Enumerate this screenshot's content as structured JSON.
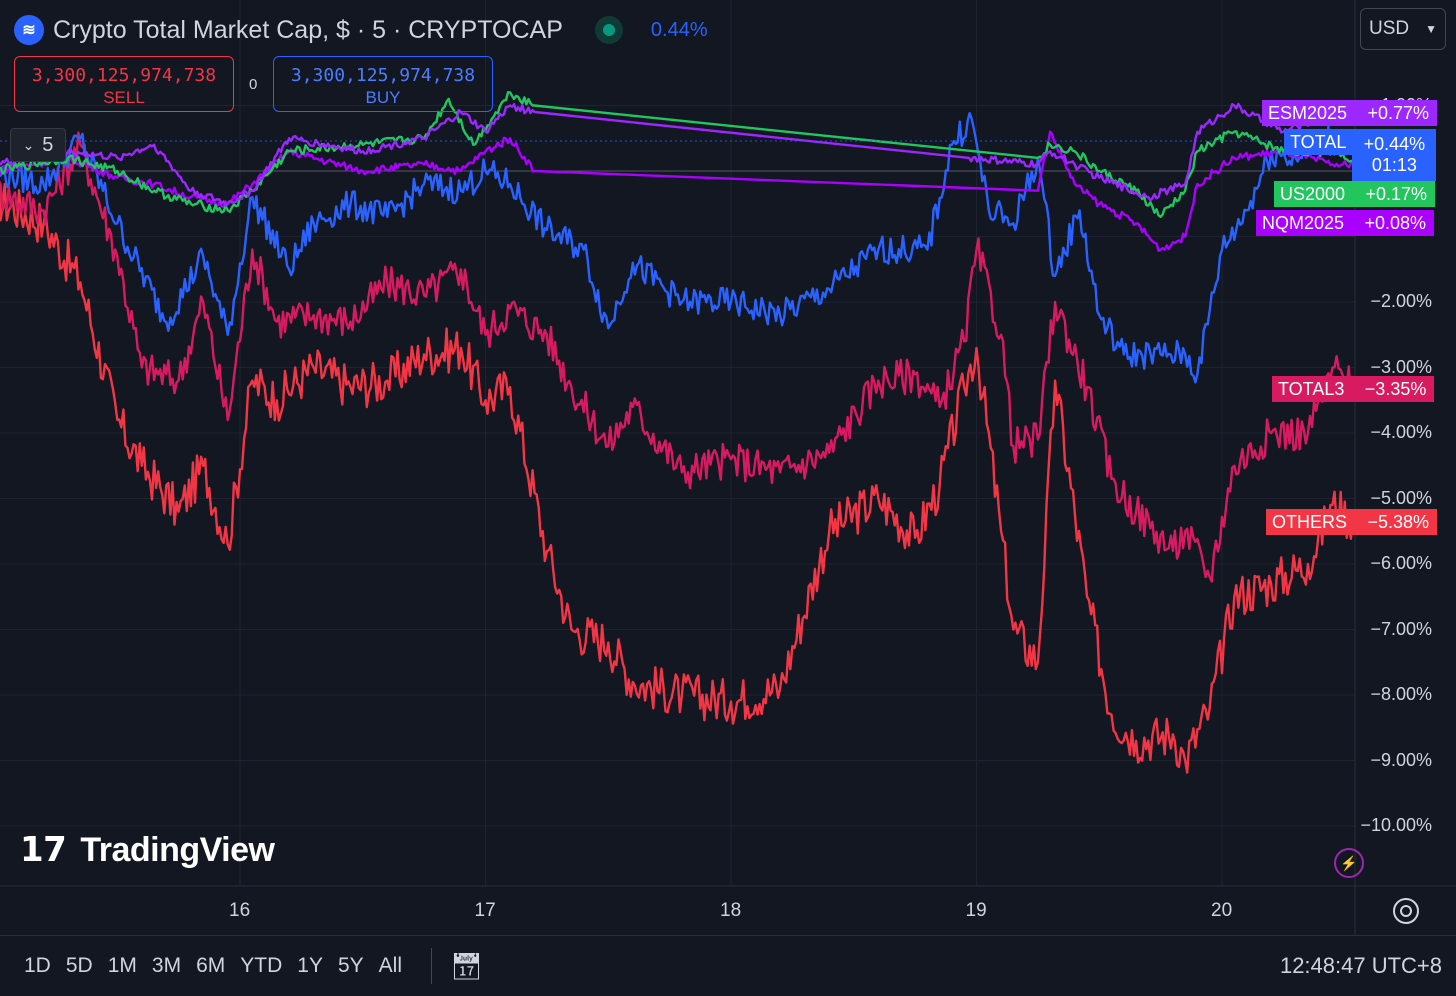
{
  "header": {
    "symbol_icon": "crypto-cap-logo",
    "title": "Crypto Total Market Cap, $ · 5 · CRYPTOCAP",
    "change": "0.44%"
  },
  "order": {
    "sell_price": "3,300,125,974,738",
    "sell_label": "SELL",
    "spread": "0",
    "buy_price": "3,300,125,974,738",
    "buy_label": "BUY"
  },
  "indicator_toggle": {
    "label": "5",
    "icon": "chevron-down-icon"
  },
  "currency": {
    "value": "USD"
  },
  "colors": {
    "background": "#131722",
    "grid": "#1f2330",
    "TOTAL": "#2962ff",
    "TOTAL3": "#d81b60",
    "OTHERS": "#f23645",
    "ESM2025": "#9c27ff",
    "US2000": "#22c55e",
    "NQM2025": "#aa00ff"
  },
  "badges": [
    {
      "name": "ESM2025",
      "value": "+0.77%",
      "color": "#9c27ff"
    },
    {
      "name": "TOTAL",
      "value": "+0.44%",
      "sub": "01:13",
      "color": "#2962ff"
    },
    {
      "name": "US2000",
      "value": "+0.17%",
      "color": "#22c55e"
    },
    {
      "name": "NQM2025",
      "value": "+0.08%",
      "color": "#aa00ff"
    },
    {
      "name": "TOTAL3",
      "value": "−3.35%",
      "color": "#d81b60"
    },
    {
      "name": "OTHERS",
      "value": "−5.38%",
      "color": "#f23645"
    }
  ],
  "chart_data": {
    "type": "line",
    "title": "Crypto Total Market Cap, $ · 5 · CRYPTOCAP",
    "x_unit": "day",
    "x_ticks": [
      "16",
      "17",
      "18",
      "19",
      "20"
    ],
    "y_ticks": [
      "1.00%",
      "−2.00%",
      "−3.00%",
      "−4.00%",
      "−5.00%",
      "−6.00%",
      "−7.00%",
      "−8.00%",
      "−9.00%",
      "−10.00%"
    ],
    "ylim": [
      -10.9,
      1.9
    ],
    "xlim": [
      15.0,
      20.55
    ],
    "grid": true,
    "legend": "right-axis labels",
    "series": [
      {
        "name": "ESM2025",
        "x": [
          15.0,
          15.3,
          15.5,
          15.65,
          15.8,
          15.95,
          16.05,
          16.2,
          16.5,
          16.75,
          16.9,
          17.0,
          17.1,
          17.2,
          18.97,
          19.25,
          19.3,
          19.4,
          19.5,
          19.7,
          19.85,
          19.9,
          20.05,
          20.25,
          20.45,
          20.55
        ],
        "y": [
          0.1,
          0.3,
          0.2,
          0.4,
          -0.3,
          -0.5,
          -0.3,
          0.5,
          0.3,
          0.5,
          0.9,
          0.6,
          1.0,
          0.9,
          0.2,
          0.1,
          0.3,
          0.1,
          -0.1,
          -0.4,
          -0.2,
          0.6,
          1.0,
          0.6,
          0.9,
          0.77
        ]
      },
      {
        "name": "TOTAL",
        "x": [
          15.0,
          15.2,
          15.35,
          15.5,
          15.7,
          15.85,
          15.95,
          16.05,
          16.2,
          16.3,
          16.45,
          16.6,
          16.75,
          16.9,
          17.0,
          17.1,
          17.25,
          17.4,
          17.5,
          17.6,
          17.8,
          18.0,
          18.2,
          18.4,
          18.6,
          18.8,
          18.9,
          18.98,
          19.05,
          19.15,
          19.25,
          19.32,
          19.42,
          19.5,
          19.6,
          19.75,
          19.85,
          19.9,
          20.0,
          20.1,
          20.2,
          20.3,
          20.4,
          20.55
        ],
        "y": [
          0.0,
          -0.2,
          0.5,
          -0.8,
          -2.3,
          -1.3,
          -2.5,
          -0.4,
          -1.5,
          -0.8,
          -0.5,
          -0.7,
          -0.2,
          -0.3,
          0.0,
          -0.2,
          -0.9,
          -1.2,
          -2.4,
          -1.4,
          -2.0,
          -2.0,
          -2.2,
          -1.8,
          -1.2,
          -1.2,
          0.4,
          0.8,
          -0.6,
          -0.8,
          0.2,
          -1.6,
          -0.6,
          -2.2,
          -2.8,
          -2.8,
          -2.8,
          -3.1,
          -1.2,
          -0.6,
          0.3,
          0.2,
          0.5,
          0.44
        ]
      },
      {
        "name": "US2000",
        "x": [
          15.0,
          15.3,
          15.5,
          15.65,
          15.8,
          15.95,
          16.05,
          16.2,
          16.5,
          16.75,
          16.85,
          16.95,
          17.1,
          17.2,
          19.25,
          19.3,
          19.4,
          19.5,
          19.65,
          19.75,
          19.85,
          19.9,
          20.05,
          20.25,
          20.45,
          20.55
        ],
        "y": [
          0.0,
          0.2,
          0.0,
          -0.3,
          -0.5,
          -0.6,
          -0.3,
          0.3,
          0.4,
          0.5,
          1.1,
          0.4,
          1.2,
          1.0,
          0.2,
          0.4,
          0.3,
          0.0,
          -0.3,
          -0.7,
          -0.3,
          0.3,
          0.6,
          0.3,
          0.3,
          0.17
        ]
      },
      {
        "name": "NQM2025",
        "x": [
          15.0,
          15.3,
          15.5,
          15.65,
          15.8,
          15.95,
          16.05,
          16.2,
          16.5,
          16.75,
          16.9,
          17.0,
          17.1,
          17.2,
          19.25,
          19.3,
          19.4,
          19.5,
          19.65,
          19.75,
          19.85,
          19.9,
          20.05,
          20.25,
          20.45,
          20.55
        ],
        "y": [
          0.0,
          0.2,
          -0.1,
          -0.2,
          -0.4,
          -0.5,
          -0.2,
          0.3,
          0.0,
          0.1,
          0.0,
          0.3,
          0.5,
          0.0,
          -0.3,
          0.6,
          -0.2,
          -0.5,
          -0.8,
          -1.2,
          -1.0,
          -0.2,
          0.2,
          0.3,
          0.1,
          0.08
        ]
      },
      {
        "name": "TOTAL3",
        "x": [
          15.0,
          15.2,
          15.35,
          15.5,
          15.6,
          15.75,
          15.85,
          15.95,
          16.05,
          16.15,
          16.3,
          16.45,
          16.6,
          16.75,
          16.9,
          17.0,
          17.1,
          17.25,
          17.35,
          17.5,
          17.6,
          17.8,
          18.0,
          18.2,
          18.4,
          18.6,
          18.75,
          18.85,
          18.95,
          19.0,
          19.1,
          19.15,
          19.25,
          19.32,
          19.45,
          19.55,
          19.65,
          19.8,
          19.85,
          19.95,
          20.05,
          20.2,
          20.35,
          20.45,
          20.55
        ],
        "y": [
          -0.3,
          -0.6,
          0.4,
          -1.3,
          -3.0,
          -3.2,
          -2.0,
          -3.8,
          -1.2,
          -2.3,
          -2.2,
          -2.3,
          -1.7,
          -1.9,
          -1.5,
          -2.5,
          -2.1,
          -2.5,
          -3.3,
          -4.2,
          -3.6,
          -4.6,
          -4.4,
          -4.6,
          -4.3,
          -3.2,
          -3.1,
          -3.6,
          -2.6,
          -1.2,
          -2.5,
          -4.2,
          -4.1,
          -2.0,
          -3.3,
          -4.7,
          -5.2,
          -5.8,
          -5.5,
          -6.2,
          -4.5,
          -4.0,
          -4.0,
          -3.0,
          -3.35
        ]
      },
      {
        "name": "OTHERS",
        "x": [
          15.0,
          15.2,
          15.35,
          15.5,
          15.6,
          15.75,
          15.85,
          15.95,
          16.05,
          16.15,
          16.3,
          16.45,
          16.6,
          16.75,
          16.9,
          17.0,
          17.1,
          17.25,
          17.35,
          17.5,
          17.6,
          17.8,
          18.0,
          18.2,
          18.4,
          18.6,
          18.75,
          18.85,
          18.95,
          19.0,
          19.1,
          19.15,
          19.25,
          19.32,
          19.45,
          19.55,
          19.65,
          19.8,
          19.85,
          19.95,
          20.05,
          20.2,
          20.35,
          20.45,
          20.55
        ],
        "y": [
          -0.4,
          -0.8,
          -1.7,
          -3.8,
          -4.5,
          -5.2,
          -4.5,
          -5.7,
          -3.2,
          -3.5,
          -3.0,
          -3.3,
          -3.2,
          -2.8,
          -2.7,
          -3.5,
          -3.3,
          -5.8,
          -7.0,
          -7.2,
          -7.8,
          -8.0,
          -8.1,
          -7.9,
          -5.5,
          -5.0,
          -5.6,
          -4.8,
          -3.3,
          -2.7,
          -5.5,
          -7.0,
          -7.5,
          -3.2,
          -6.5,
          -8.3,
          -8.7,
          -8.6,
          -9.0,
          -8.2,
          -6.5,
          -6.3,
          -6.0,
          -5.1,
          -5.38
        ]
      }
    ]
  },
  "watermark": {
    "text": "TradingView"
  },
  "bottom_bar": {
    "ranges": [
      "1D",
      "5D",
      "1M",
      "3M",
      "6M",
      "YTD",
      "1Y",
      "5Y",
      "All"
    ],
    "calendar_icon": "calendar-icon",
    "clock": "12:48:47 UTC+8"
  }
}
